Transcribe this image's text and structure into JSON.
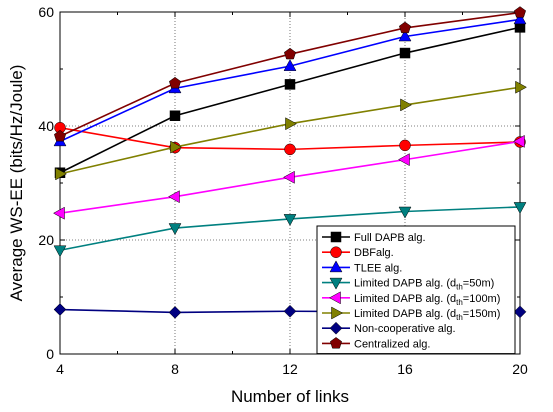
{
  "chart_data": {
    "type": "line",
    "title": "",
    "xlabel": "Number of links",
    "ylabel": "Average WS-EE (bits/Hz/Joule)",
    "xlim": [
      4,
      20
    ],
    "ylim": [
      0,
      60
    ],
    "xticks": [
      4,
      8,
      12,
      16,
      20
    ],
    "yticks": [
      0,
      20,
      40,
      60
    ],
    "grid": true,
    "legend_position": "bottom-right",
    "x": [
      4,
      8,
      12,
      16,
      20
    ],
    "series": [
      {
        "name": "Full DAPB alg.",
        "legend_main": "Full DAPB alg.",
        "legend_sub": "",
        "legend_tail": "",
        "color": "#000000",
        "marker": "square",
        "values": [
          31.8,
          41.8,
          47.3,
          52.8,
          57.3
        ]
      },
      {
        "name": "DBFalg.",
        "legend_main": "DBFalg.",
        "legend_sub": "",
        "legend_tail": "",
        "color": "#ff0000",
        "marker": "circle",
        "values": [
          39.7,
          36.2,
          35.9,
          36.6,
          37.2
        ]
      },
      {
        "name": "TLEE alg.",
        "legend_main": "TLEE alg.",
        "legend_sub": "",
        "legend_tail": "",
        "color": "#0000ff",
        "marker": "triangle-up",
        "values": [
          37.3,
          46.6,
          50.5,
          55.7,
          58.7
        ]
      },
      {
        "name": "Limited DAPB alg. (dth=50m)",
        "legend_main": "Limited DAPB alg. (d",
        "legend_sub": "th",
        "legend_tail": "=50m)",
        "color": "#008080",
        "marker": "triangle-down",
        "values": [
          18.2,
          22.1,
          23.7,
          25.0,
          25.8
        ]
      },
      {
        "name": "Limited DAPB alg. (dth=100m)",
        "legend_main": "Limited DAPB alg. (d",
        "legend_sub": "th",
        "legend_tail": "=100m)",
        "color": "#ff00ff",
        "marker": "triangle-left",
        "values": [
          24.7,
          27.6,
          31.0,
          34.1,
          37.3
        ]
      },
      {
        "name": "Limited DAPB alg. (dth=150m)",
        "legend_main": "Limited DAPB alg. (d",
        "legend_sub": "th",
        "legend_tail": "=150m)",
        "color": "#808000",
        "marker": "triangle-right",
        "values": [
          31.6,
          36.3,
          40.4,
          43.7,
          46.8
        ]
      },
      {
        "name": "Non-cooperative alg.",
        "legend_main": "Non-cooperative alg.",
        "legend_sub": "",
        "legend_tail": "",
        "color": "#000080",
        "marker": "diamond",
        "values": [
          7.8,
          7.3,
          7.5,
          7.4,
          7.4
        ]
      },
      {
        "name": "Centralized alg.",
        "legend_main": "Centralized alg.",
        "legend_sub": "",
        "legend_tail": "",
        "color": "#800000",
        "marker": "pentagon",
        "values": [
          38.2,
          47.5,
          52.6,
          57.2,
          59.9
        ]
      }
    ]
  }
}
